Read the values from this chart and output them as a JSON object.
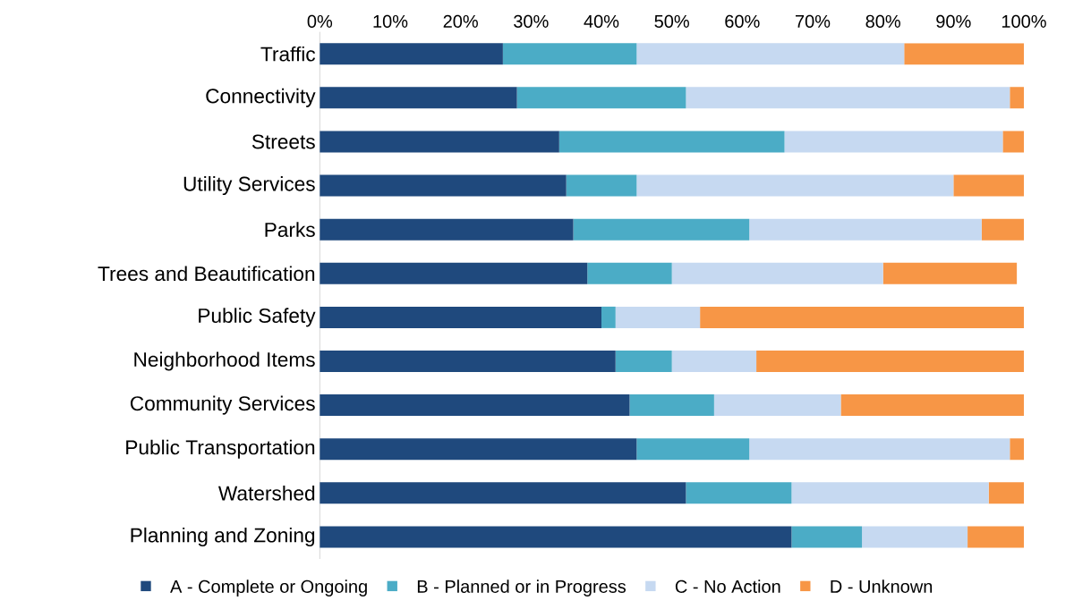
{
  "chart_data": {
    "type": "bar",
    "orientation": "horizontal",
    "stacked": true,
    "categories": [
      "Traffic",
      "Connectivity",
      "Streets",
      "Utility Services",
      "Parks",
      "Trees and Beautification",
      "Public Safety",
      "Neighborhood Items",
      "Community Services",
      "Public Transportation",
      "Watershed",
      "Planning and Zoning"
    ],
    "series": [
      {
        "name": "A - Complete or Ongoing",
        "color": "#1f497d",
        "values": [
          26,
          28,
          34,
          35,
          36,
          38,
          40,
          42,
          44,
          45,
          52,
          67
        ]
      },
      {
        "name": "B - Planned or in Progress",
        "color": "#4bacc6",
        "values": [
          19,
          24,
          32,
          10,
          25,
          12,
          2,
          8,
          12,
          16,
          15,
          10
        ]
      },
      {
        "name": "C - No Action",
        "color": "#c6d9f1",
        "values": [
          38,
          46,
          31,
          45,
          33,
          30,
          12,
          12,
          18,
          37,
          28,
          15
        ]
      },
      {
        "name": "D - Unknown",
        "color": "#f79646",
        "values": [
          17,
          2,
          3,
          10,
          6,
          19,
          46,
          38,
          26,
          2,
          5,
          8
        ]
      }
    ],
    "xlim": [
      0,
      100
    ],
    "xticks": [
      {
        "value": 0,
        "label": "0%"
      },
      {
        "value": 10,
        "label": "10%"
      },
      {
        "value": 20,
        "label": "20%"
      },
      {
        "value": 30,
        "label": "30%"
      },
      {
        "value": 40,
        "label": "40%"
      },
      {
        "value": 50,
        "label": "50%"
      },
      {
        "value": 60,
        "label": "60%"
      },
      {
        "value": 70,
        "label": "70%"
      },
      {
        "value": 80,
        "label": "80%"
      },
      {
        "value": 90,
        "label": "90%"
      },
      {
        "value": 100,
        "label": "100%"
      }
    ],
    "grid": false,
    "legend": "bottom"
  }
}
